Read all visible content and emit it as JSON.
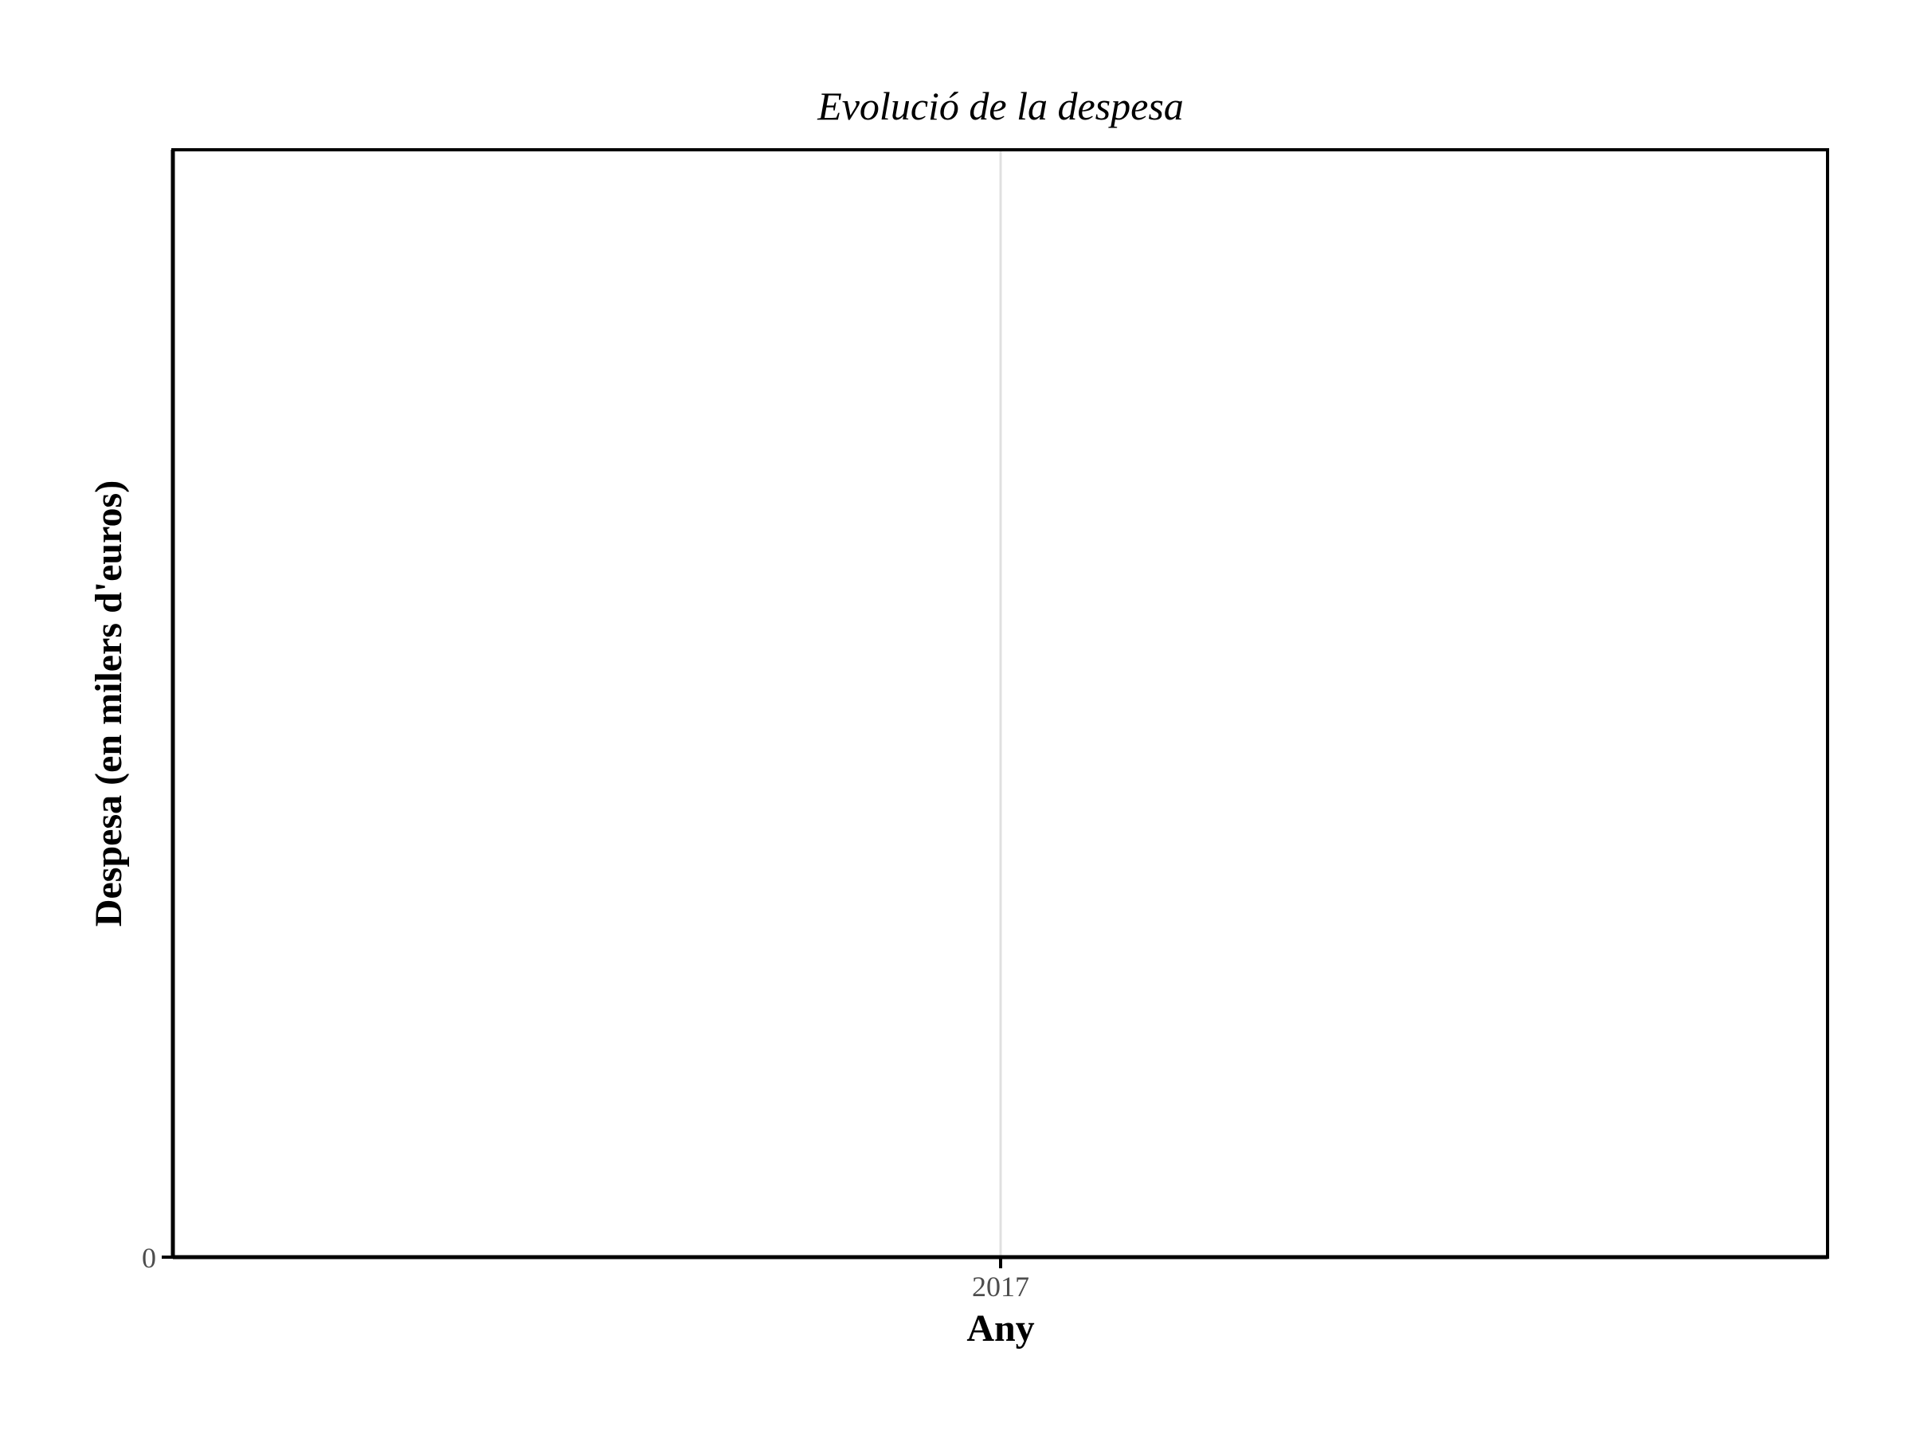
{
  "chart_data": {
    "type": "line",
    "title": "Evolució de la despesa",
    "xlabel": "Any",
    "ylabel": "Despesa (en milers d'euros)",
    "x_ticks": [
      "2017"
    ],
    "y_ticks": [
      "0"
    ],
    "x": [],
    "series": [],
    "grid": true,
    "legend": "none",
    "colors": {
      "panel_border": "#000000",
      "grid": "#e0e0e0",
      "tick_text": "#4d4d4d"
    }
  }
}
